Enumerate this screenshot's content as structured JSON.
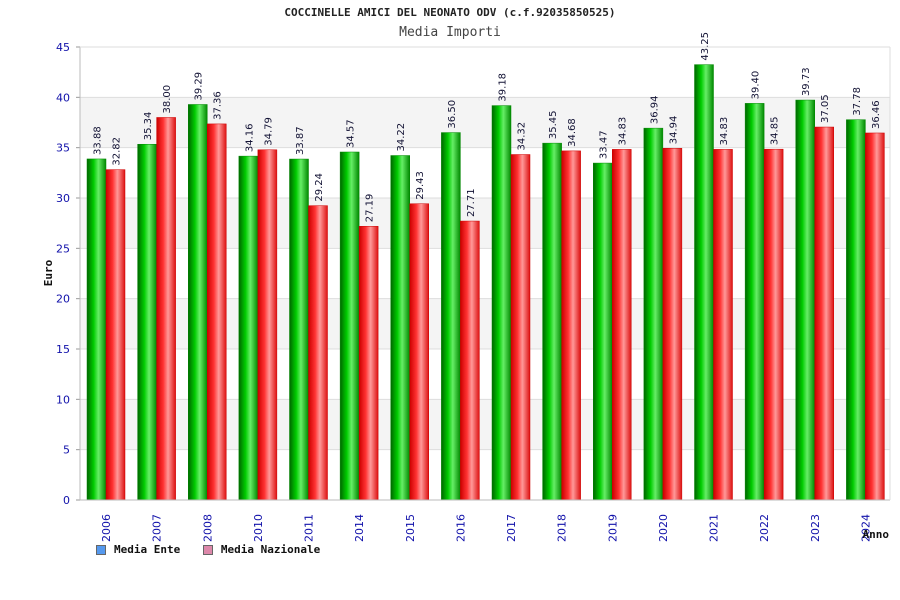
{
  "chart_data": {
    "type": "bar",
    "title": "COCCINELLE AMICI DEL NEONATO ODV (c.f.92035850525)",
    "subtitle": "Media Importi",
    "xlabel": "Anno",
    "ylabel": "Euro",
    "ylim": [
      0,
      45
    ],
    "yticks": [
      0,
      5,
      10,
      15,
      20,
      25,
      30,
      35,
      40,
      45
    ],
    "grid": true,
    "legend_position": "bottom-left",
    "categories": [
      "2006",
      "2007",
      "2008",
      "2010",
      "2011",
      "2014",
      "2015",
      "2016",
      "2017",
      "2018",
      "2019",
      "2020",
      "2021",
      "2022",
      "2023",
      "2024"
    ],
    "series": [
      {
        "name": "Media Ente",
        "color": "#00aa00",
        "legend_color": "#5599ee",
        "values": [
          33.88,
          35.34,
          39.29,
          34.16,
          33.87,
          34.57,
          34.22,
          36.5,
          39.18,
          35.45,
          33.47,
          36.94,
          43.25,
          39.4,
          39.73,
          37.78
        ]
      },
      {
        "name": "Media Nazionale",
        "color": "#ee2222",
        "legend_color": "#dd88aa",
        "values": [
          32.82,
          38.0,
          37.36,
          34.79,
          29.24,
          27.19,
          29.43,
          27.71,
          34.32,
          34.68,
          34.83,
          34.94,
          34.83,
          34.85,
          37.05,
          36.46
        ]
      }
    ]
  }
}
